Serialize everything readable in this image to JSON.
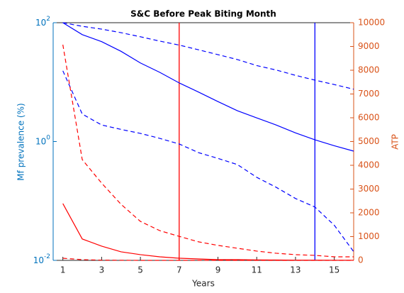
{
  "chart_data": {
    "type": "line",
    "title": "S&C Before Peak Biting Month",
    "xlabel": "Years",
    "ylabel": "Mf prevalence (%)",
    "y2label": "ATP",
    "x": [
      1,
      2,
      3,
      4,
      5,
      6,
      7,
      8,
      9,
      10,
      11,
      12,
      13,
      14,
      15,
      16
    ],
    "xlim": [
      0.5,
      16
    ],
    "xticks": [
      1,
      3,
      5,
      7,
      9,
      11,
      13,
      15
    ],
    "ylim": [
      0.01,
      100
    ],
    "yscale": "log",
    "yticks": [
      {
        "value": 0.01,
        "label": "10^-2"
      },
      {
        "value": 1,
        "label": "10^0"
      },
      {
        "value": 100,
        "label": "10^2"
      }
    ],
    "y2lim": [
      0,
      10000
    ],
    "y2ticks": [
      0,
      1000,
      2000,
      3000,
      4000,
      5000,
      6000,
      7000,
      8000,
      9000,
      10000
    ],
    "axis_color": "#0072bd",
    "axis2_color": "#d95319",
    "series": [
      {
        "color": "#0000ff",
        "dash": false,
        "values": [
          100,
          63,
          48,
          33,
          21,
          14.6,
          9.7,
          6.8,
          4.7,
          3.3,
          2.5,
          1.9,
          1.4,
          1.07,
          0.85,
          0.69
        ]
      },
      {
        "color": "#0000ff",
        "dash": true,
        "values": [
          100,
          87,
          78,
          68,
          58,
          49,
          42,
          35,
          29,
          24,
          19,
          16,
          13,
          10.8,
          9.1,
          7.6
        ]
      },
      {
        "color": "#0000ff",
        "dash": true,
        "values": [
          15.5,
          2.9,
          1.9,
          1.6,
          1.37,
          1.13,
          0.91,
          0.65,
          0.52,
          0.41,
          0.25,
          0.17,
          0.11,
          0.079,
          0.039,
          0.014
        ]
      },
      {
        "color": "#ff0000",
        "dash": true,
        "axis": "y2",
        "values": [
          9075,
          4240,
          3250,
          2360,
          1640,
          1250,
          1010,
          780,
          630,
          510,
          390,
          300,
          240,
          210,
          150,
          150
        ]
      },
      {
        "color": "#ff0000",
        "dash": false,
        "axis": "y2",
        "values": [
          2390,
          900,
          600,
          360,
          240,
          150,
          90,
          60,
          30,
          30,
          20,
          15,
          10,
          10,
          5,
          5
        ]
      },
      {
        "color": "#ff0000",
        "dash": true,
        "axis": "y2",
        "values": [
          90,
          30,
          10,
          5,
          0,
          0,
          0,
          0,
          0,
          0,
          0,
          0,
          0,
          0,
          0,
          0
        ]
      }
    ],
    "vlines": [
      {
        "x": 7,
        "color": "#ff0000"
      },
      {
        "x": 14,
        "color": "#0000ff"
      }
    ]
  }
}
